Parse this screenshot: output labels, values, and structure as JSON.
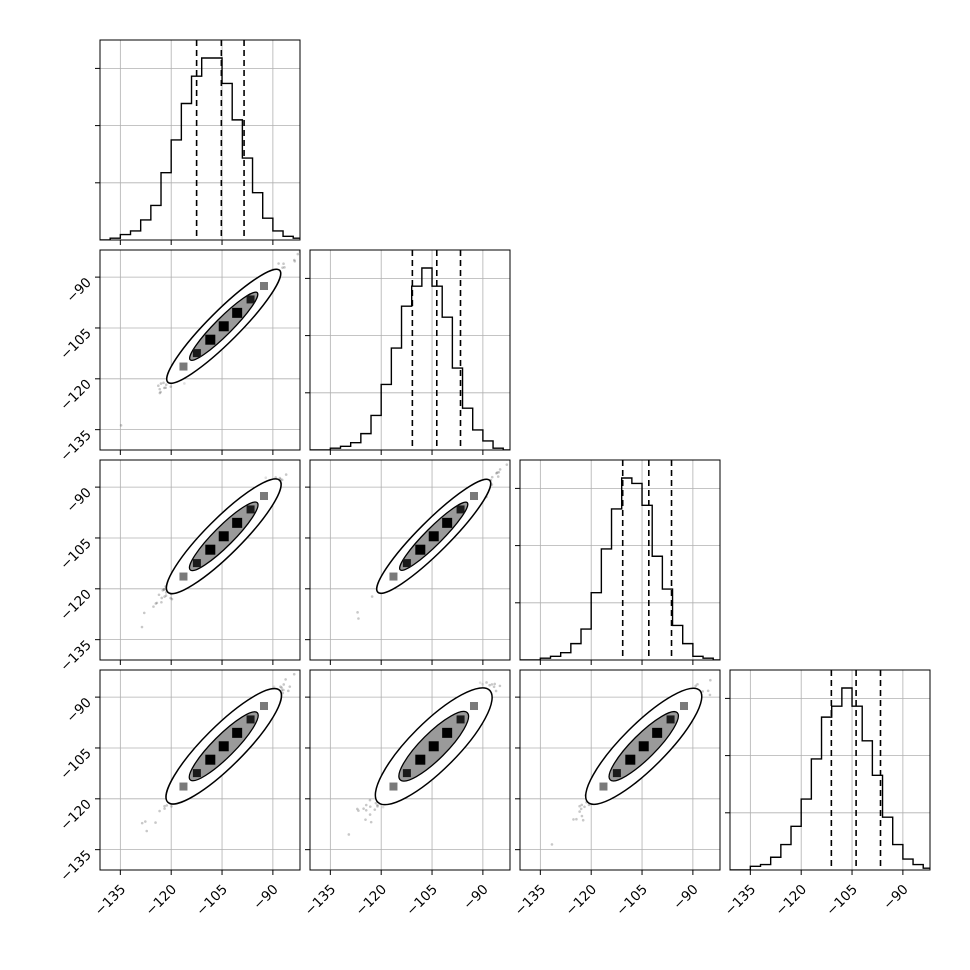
{
  "chart_data": {
    "type": "corner",
    "parameters": 4,
    "axis_range": [
      -141,
      -82
    ],
    "tick_values": [
      -135,
      -120,
      -105,
      -90
    ],
    "tick_labels": [
      "−135",
      "−120",
      "−105",
      "−90"
    ],
    "grid": true,
    "quantile_lines": [
      [
        -112.5,
        -105.2,
        -98.5
      ],
      [
        -110.8,
        -103.6,
        -96.6
      ],
      [
        -110.7,
        -103.0,
        -96.3
      ],
      [
        -111.1,
        -103.8,
        -96.6
      ]
    ],
    "histogram_bins": [
      -141,
      -138,
      -135,
      -132,
      -129,
      -126,
      -123,
      -120,
      -117,
      -114,
      -111,
      -108,
      -105,
      -102,
      -99,
      -96,
      -93,
      -90,
      -87,
      -84,
      -81
    ],
    "histograms": [
      [
        0,
        0.01,
        0.03,
        0.05,
        0.11,
        0.19,
        0.37,
        0.55,
        0.75,
        0.9,
        1.0,
        1.0,
        0.86,
        0.66,
        0.45,
        0.26,
        0.12,
        0.05,
        0.02,
        0.01
      ],
      [
        0,
        0,
        0.01,
        0.02,
        0.04,
        0.09,
        0.19,
        0.36,
        0.56,
        0.79,
        0.9,
        1.0,
        0.9,
        0.73,
        0.45,
        0.23,
        0.11,
        0.05,
        0.01,
        0
      ],
      [
        0,
        0,
        0.01,
        0.02,
        0.04,
        0.09,
        0.17,
        0.37,
        0.61,
        0.83,
        1.0,
        0.97,
        0.85,
        0.57,
        0.39,
        0.19,
        0.09,
        0.02,
        0.01,
        0
      ],
      [
        0,
        0,
        0.02,
        0.03,
        0.07,
        0.14,
        0.24,
        0.39,
        0.61,
        0.84,
        0.9,
        1.0,
        0.9,
        0.71,
        0.52,
        0.29,
        0.14,
        0.06,
        0.03,
        0.01
      ]
    ],
    "pair_correlations": {
      "1-0": 0.985,
      "2-0": 0.98,
      "2-1": 0.985,
      "3-0": 0.975,
      "3-1": 0.965,
      "3-2": 0.97
    },
    "pair_mean": -104.5,
    "pair_sd": 7.5
  }
}
